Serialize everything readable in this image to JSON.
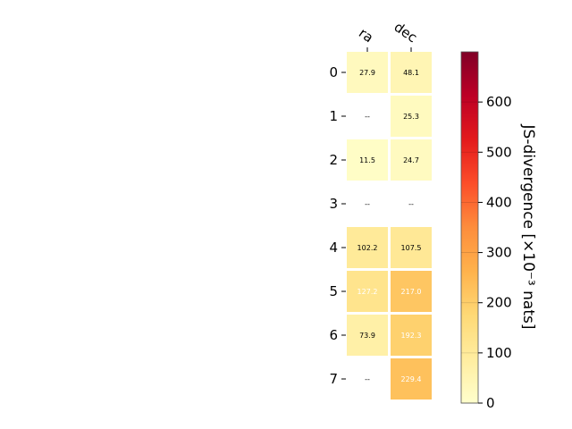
{
  "chart_data": {
    "type": "heatmap",
    "columns": [
      "ra",
      "dec"
    ],
    "rows": [
      "0",
      "1",
      "2",
      "3",
      "4",
      "5",
      "6",
      "7"
    ],
    "values": [
      [
        27.9,
        48.1
      ],
      [
        null,
        25.3
      ],
      [
        11.5,
        24.7
      ],
      [
        null,
        null
      ],
      [
        102.2,
        107.5
      ],
      [
        127.2,
        217.0
      ],
      [
        73.9,
        192.3
      ],
      [
        null,
        229.4
      ]
    ],
    "labels": [
      [
        "27.9",
        "48.1"
      ],
      [
        "--",
        "25.3"
      ],
      [
        "11.5",
        "24.7"
      ],
      [
        "--",
        "--"
      ],
      [
        "102.2",
        "107.5"
      ],
      [
        "127.2",
        "217.0"
      ],
      [
        "73.9",
        "192.3"
      ],
      [
        "--",
        "229.4"
      ]
    ],
    "colorbar": {
      "label": "JS-divergence [×10⁻³ nats]",
      "range": [
        0,
        700
      ],
      "ticks": [
        0,
        100,
        200,
        300,
        400,
        500,
        600
      ],
      "colormap": "YlOrRd"
    },
    "grid": false
  }
}
